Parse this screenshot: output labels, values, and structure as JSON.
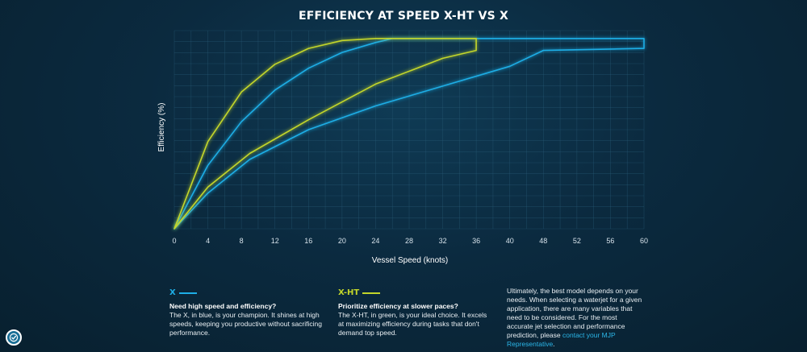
{
  "chart_data": {
    "type": "line",
    "title": "EFFICIENCY AT SPEED X-HT VS X",
    "xlabel": "Vessel Speed (knots)",
    "ylabel": "Efficiency (%)",
    "xlim": [
      0,
      60
    ],
    "ylim": [
      0,
      100
    ],
    "xticks": [
      "0",
      "4",
      "8",
      "12",
      "16",
      "20",
      "24",
      "28",
      "32",
      "36",
      "40",
      "48",
      "52",
      "56",
      "60"
    ],
    "tick_positions": [
      0,
      4,
      8,
      12,
      16,
      20,
      24,
      28,
      32,
      36,
      40,
      48,
      52,
      56,
      60
    ],
    "grid": true,
    "series": [
      {
        "name": "X",
        "color": "#1eaee6",
        "upper": [
          [
            0,
            0
          ],
          [
            4,
            32
          ],
          [
            8,
            54
          ],
          [
            12,
            70
          ],
          [
            16,
            81
          ],
          [
            20,
            89
          ],
          [
            24,
            94
          ],
          [
            26,
            96
          ],
          [
            60,
            96
          ]
        ],
        "lower": [
          [
            0,
            0
          ],
          [
            4,
            18
          ],
          [
            9,
            35
          ],
          [
            16,
            50
          ],
          [
            24,
            62
          ],
          [
            32,
            72
          ],
          [
            40,
            82
          ],
          [
            48,
            90
          ],
          [
            60,
            91
          ]
        ]
      },
      {
        "name": "X-HT",
        "color": "#c3d62a",
        "upper": [
          [
            0,
            0
          ],
          [
            4,
            44
          ],
          [
            8,
            69
          ],
          [
            12,
            83
          ],
          [
            16,
            91
          ],
          [
            20,
            95
          ],
          [
            24,
            96
          ],
          [
            36,
            96
          ]
        ],
        "lower": [
          [
            0,
            0
          ],
          [
            4,
            21
          ],
          [
            9,
            38
          ],
          [
            16,
            55
          ],
          [
            24,
            73
          ],
          [
            32,
            86
          ],
          [
            36,
            90
          ]
        ]
      }
    ]
  },
  "legend": {
    "x": {
      "key": "X",
      "color": "#1eaee6",
      "question": "Need high speed and efficiency?",
      "text": "The X, in blue, is your champion. It shines at high speeds, keeping you productive without sacrificing performance."
    },
    "xht": {
      "key": "X-HT",
      "color": "#c3d62a",
      "question": "Prioritize efficiency at slower paces?",
      "text": "The X-HT, in green, is your ideal choice. It excels at maximizing efficiency during tasks that don't demand top speed."
    }
  },
  "note": {
    "text": "Ultimately, the best model depends on your needs. When selecting a waterjet for a given application, there are many variables that need to be considered. For the most accurate jet selection and performance prediction, please ",
    "link": "contact your MJP Representative",
    "end": "."
  },
  "badge": {
    "icon": "accessibility-icon"
  }
}
